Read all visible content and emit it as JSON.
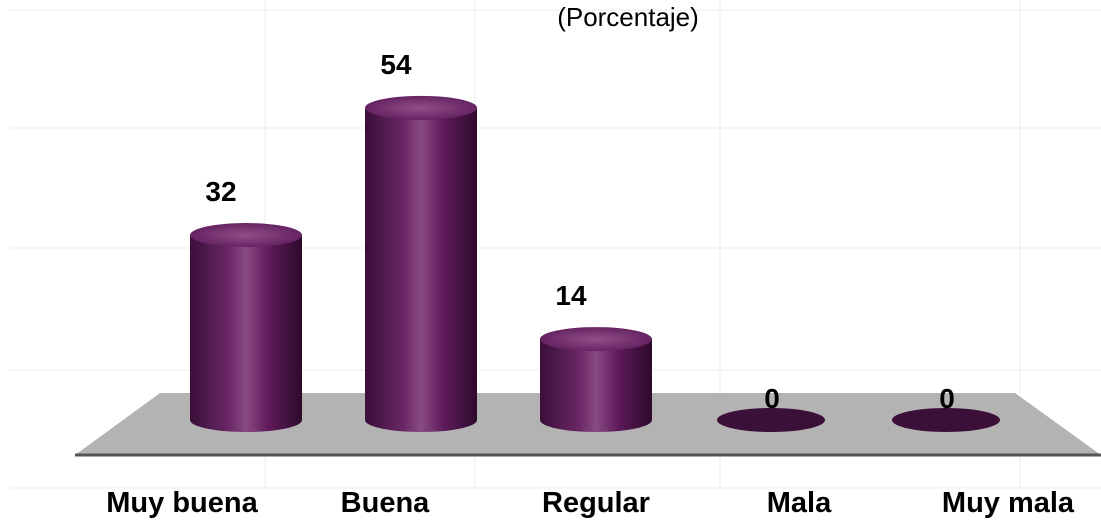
{
  "chart_data": {
    "type": "bar",
    "subtitle": "(Porcentaje)",
    "categories": [
      "Muy buena",
      "Buena",
      "Regular",
      "Mala",
      "Muy mala"
    ],
    "values": [
      32,
      54,
      14,
      0,
      0
    ],
    "xlabel": "",
    "ylabel": "",
    "ylim": [
      0,
      60
    ],
    "grid": true,
    "legend": "none",
    "colors": {
      "bar": "#5e1a5b",
      "bar_highlight": "#8a4a85",
      "bar_shadow": "#3a0f38",
      "top_cap": "#74306f",
      "floor": "#b3b3b3",
      "baseline": "#555555",
      "text": "#000000",
      "grid": "#eeeeee"
    }
  }
}
